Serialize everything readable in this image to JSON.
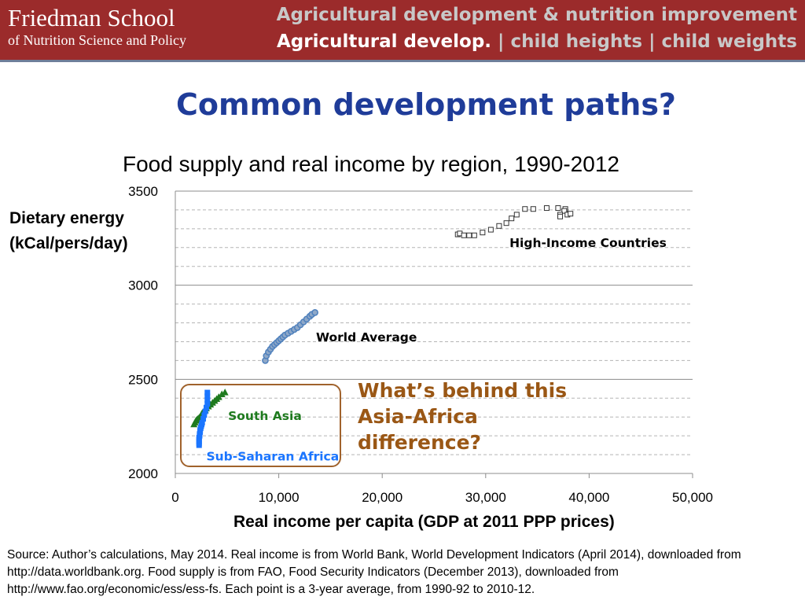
{
  "header": {
    "school_name": "Friedman School",
    "school_subtitle": "of Nutrition Science and Policy",
    "topic": "Agricultural development & nutrition improvement",
    "nav": {
      "active": "Agricultural develop.",
      "rest": " | child heights | child weights"
    }
  },
  "slide_title": "Common development paths?",
  "callout": "What’s behind this Asia-Africa difference?",
  "source_note": "Source: Author’s calculations, May 2014.  Real income is from World Bank, World Development Indicators (April 2014), downloaded from http://data.worldbank.org.   Food supply is from FAO, Food Security Indicators (December 2013), downloaded from http://www.fao.org/economic/ess/ess-fs.   Each point is a 3-year average, from 1990-92 to 2010-12.",
  "colors": {
    "header_bg": "#9b2b2b",
    "title": "#1f3c99",
    "callout": "#9a5715",
    "world": "#4f81bd",
    "south_asia": "#1e7a1e",
    "ssa": "#1a75ff"
  },
  "chart_data": {
    "type": "scatter",
    "title": "Food supply and real income by region, 1990-2012",
    "xlabel": "Real income per capita (GDP at 2011 PPP prices)",
    "ylabel": "Dietary energy (kCal/pers/day)",
    "xlim": [
      0,
      50000
    ],
    "ylim": [
      2000,
      3500
    ],
    "xticks": [
      0,
      10000,
      20000,
      30000,
      40000,
      50000
    ],
    "xtick_labels": [
      "0",
      "10,000",
      "20,000",
      "30,000",
      "40,000",
      "50,000"
    ],
    "yticks": [
      2000,
      2500,
      3000,
      3500
    ],
    "ytick_labels": [
      "2000",
      "2500",
      "3000",
      "3500"
    ],
    "grid": true,
    "series": [
      {
        "name": "High-Income Countries",
        "marker": "square-open",
        "x": [
          27300,
          27500,
          27900,
          28400,
          28900,
          29700,
          30500,
          31300,
          32000,
          32500,
          33000,
          33800,
          34600,
          35900,
          37000,
          37700,
          37600,
          37200,
          37200,
          37900,
          38200
        ],
        "y": [
          3270,
          3275,
          3265,
          3265,
          3265,
          3280,
          3295,
          3315,
          3330,
          3355,
          3375,
          3405,
          3405,
          3410,
          3410,
          3405,
          3395,
          3375,
          3365,
          3375,
          3380
        ]
      },
      {
        "name": "World Average",
        "marker": "circle",
        "x": [
          8700,
          8800,
          9000,
          9200,
          9400,
          9600,
          9800,
          10000,
          10200,
          10400,
          10600,
          10900,
          11200,
          11500,
          11800,
          12100,
          12400,
          12700,
          13000,
          13200,
          13500
        ],
        "y": [
          2600,
          2625,
          2645,
          2660,
          2675,
          2685,
          2695,
          2705,
          2715,
          2725,
          2735,
          2745,
          2755,
          2765,
          2775,
          2790,
          2805,
          2820,
          2835,
          2845,
          2855
        ]
      },
      {
        "name": "South Asia",
        "marker": "triangle",
        "x": [
          1800,
          1900,
          2000,
          2100,
          2200,
          2300,
          2400,
          2500,
          2600,
          2700,
          2800,
          2900,
          3000,
          3200,
          3400,
          3600,
          3800,
          4000,
          4200,
          4500,
          4800
        ],
        "y": [
          2260,
          2270,
          2280,
          2285,
          2290,
          2295,
          2300,
          2310,
          2320,
          2325,
          2330,
          2335,
          2345,
          2355,
          2365,
          2375,
          2385,
          2395,
          2405,
          2420,
          2430
        ]
      },
      {
        "name": "Sub-Saharan Africa",
        "marker": "square",
        "x": [
          2300,
          2300,
          2300,
          2300,
          2300,
          2350,
          2350,
          2400,
          2400,
          2450,
          2500,
          2550,
          2600,
          2700,
          2800,
          2900,
          3000,
          3100,
          3100,
          3100,
          3100
        ],
        "y": [
          2150,
          2160,
          2170,
          2180,
          2190,
          2200,
          2210,
          2220,
          2230,
          2240,
          2250,
          2260,
          2270,
          2290,
          2310,
          2330,
          2350,
          2370,
          2390,
          2410,
          2430
        ]
      }
    ],
    "annotations": [
      {
        "series": "High-Income Countries",
        "text": "High-Income Countries"
      },
      {
        "series": "World Average",
        "text": "World Average"
      },
      {
        "series": "South Asia",
        "text": "South Asia"
      },
      {
        "series": "Sub-Saharan Africa",
        "text": "Sub-Saharan Africa"
      }
    ]
  }
}
